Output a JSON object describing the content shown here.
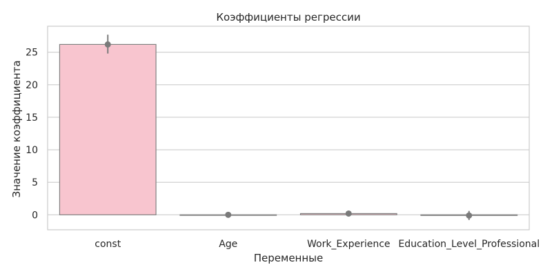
{
  "chart_data": {
    "type": "bar",
    "title": "Коэффициенты регрессии",
    "xlabel": "Переменные",
    "ylabel": "Значение коэффициента",
    "categories": [
      "const",
      "Age",
      "Work_Experience",
      "Education_Level_Professional"
    ],
    "values": [
      26.2,
      0.0,
      0.2,
      -0.1
    ],
    "error_low": [
      24.8,
      -0.05,
      0.1,
      -0.8
    ],
    "error_high": [
      27.7,
      0.05,
      0.3,
      0.6
    ],
    "ylim": [
      -2.3,
      29.0
    ],
    "yticks": [
      0,
      5,
      10,
      15,
      20,
      25
    ],
    "grid": true,
    "colors": {
      "bar_fill": "#f8c5cf",
      "bar_edge": "#808080",
      "marker": "#7a7a7a",
      "grid": "#cccccc",
      "frame": "#cccccc"
    }
  }
}
